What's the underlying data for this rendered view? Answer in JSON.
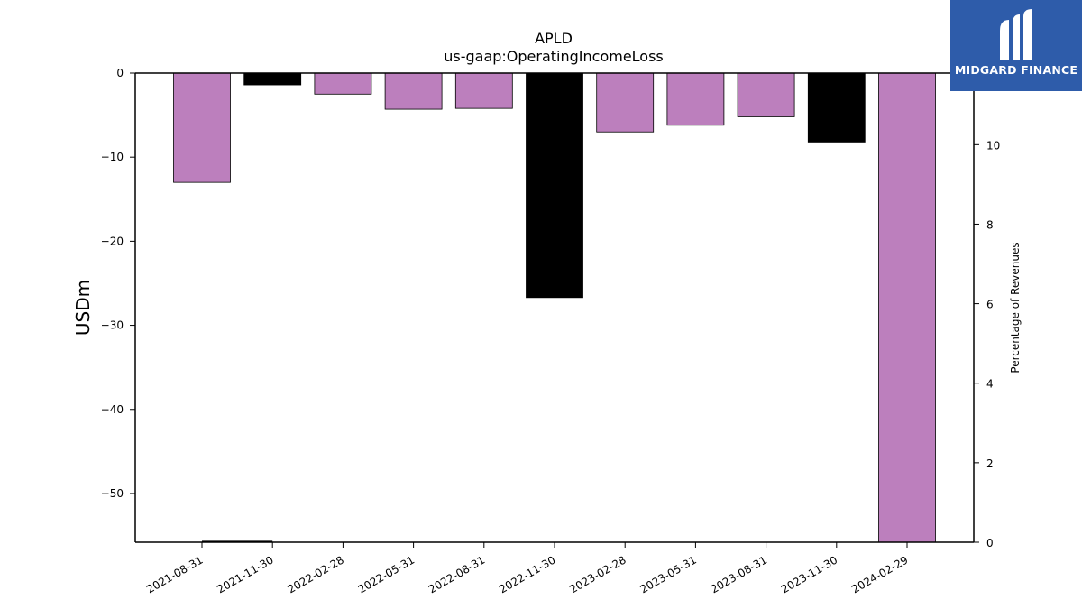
{
  "chart_data": {
    "type": "bar",
    "title": "APLD",
    "subtitle": "us-gaap:OperatingIncomeLoss",
    "ylabel": "USDm",
    "ylabel_right": "Percentage of Revenues",
    "categories": [
      "2021-08-31",
      "2021-11-30",
      "2022-02-28",
      "2022-05-31",
      "2022-08-31",
      "2022-11-30",
      "2023-02-28",
      "2023-05-31",
      "2023-08-31",
      "2023-11-30",
      "2024-02-29"
    ],
    "values": [
      -13.0,
      -1.4,
      -2.5,
      -4.3,
      -4.2,
      -26.7,
      -7.0,
      -6.2,
      -5.2,
      -8.2,
      -55.8
    ],
    "bar_colors": [
      "#bc7fbd",
      "#000000",
      "#bc7fbd",
      "#bc7fbd",
      "#bc7fbd",
      "#000000",
      "#bc7fbd",
      "#bc7fbd",
      "#bc7fbd",
      "#000000",
      "#bc7fbd"
    ],
    "ylim": [
      -55.8,
      0
    ],
    "yticks": [
      0,
      -10,
      -20,
      -30,
      -40,
      -50
    ],
    "ytick_labels": [
      "0",
      "−10",
      "−20",
      "−30",
      "−40",
      "−50"
    ],
    "y2lim": [
      0,
      11.8
    ],
    "y2ticks": [
      0,
      2,
      4,
      6,
      8,
      10
    ],
    "y2tick_labels": [
      "0",
      "2",
      "4",
      "6",
      "8",
      "10"
    ],
    "line_series": {
      "x_categories": [
        "2021-08-31",
        "2021-11-30"
      ],
      "values": [
        0.02,
        0.02
      ]
    },
    "grid": false,
    "legend": "none"
  },
  "logo": {
    "text": "MIDGARD FINANCE",
    "icon": "midgard-logo-icon",
    "background": "#2e5caa"
  }
}
